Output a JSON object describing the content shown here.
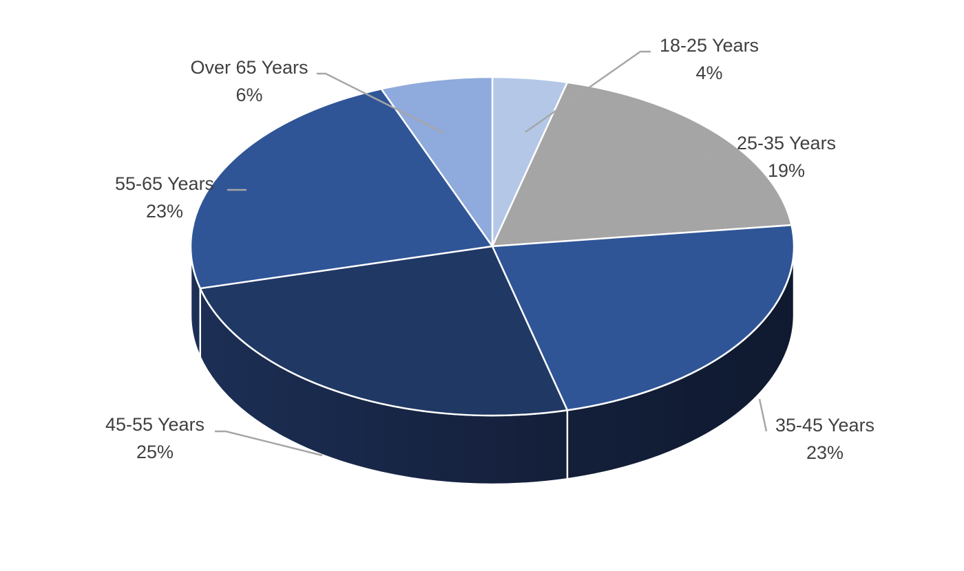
{
  "chart_data": {
    "type": "pie",
    "title": "",
    "style": "3d",
    "legend": "none",
    "start_angle": "top",
    "direction": "clockwise",
    "slices": [
      {
        "label": "18-25 Years",
        "value": 4,
        "display": "4%",
        "color": "#b4c7e7"
      },
      {
        "label": "25-35 Years",
        "value": 19,
        "display": "19%",
        "color": "#a5a5a5"
      },
      {
        "label": "35-45 Years",
        "value": 23,
        "display": "23%",
        "color": "#2f5597"
      },
      {
        "label": "45-55 Years",
        "value": 25,
        "display": "25%",
        "color": "#203864"
      },
      {
        "label": "55-65 Years",
        "value": 23,
        "display": "23%",
        "color": "#2f5597"
      },
      {
        "label": "Over 65 Years",
        "value": 6,
        "display": "6%",
        "color": "#8faadc"
      }
    ]
  }
}
